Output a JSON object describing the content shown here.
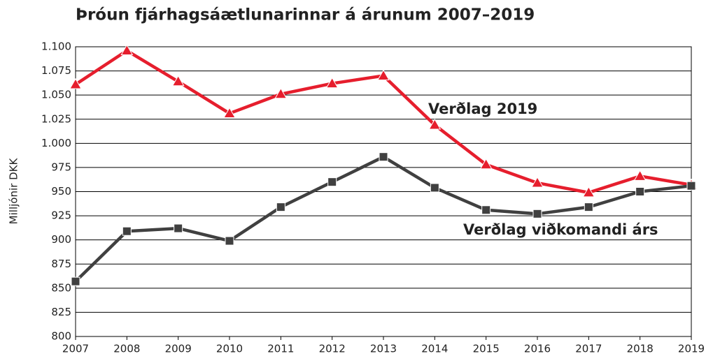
{
  "chart_data": {
    "type": "line",
    "title": "Þróun fjárhagsáætlunarinnar á árunum 2007–2019",
    "y_label": "Milljónir DKK",
    "categories": [
      "2007",
      "2008",
      "2009",
      "2010",
      "2011",
      "2012",
      "2013",
      "2014",
      "2015",
      "2016",
      "2017",
      "2018",
      "2019"
    ],
    "series": [
      {
        "name": "Verðlag 2019",
        "color": "#e61e2d",
        "marker": "triangle",
        "values": [
          1061,
          1096,
          1064,
          1031,
          1051,
          1062,
          1070,
          1019,
          978,
          959,
          949,
          966,
          957
        ]
      },
      {
        "name": "Verðlag viðkomandi árs",
        "color": "#404040",
        "marker": "square",
        "values": [
          857,
          909,
          912,
          899,
          934,
          960,
          986,
          954,
          931,
          927,
          934,
          950,
          956
        ]
      }
    ],
    "ylim": [
      800,
      1100
    ],
    "yticks": [
      800,
      825,
      850,
      875,
      900,
      925,
      950,
      975,
      {
        "value": 1000,
        "label": "1.000"
      },
      {
        "value": 1025,
        "label": "1.025"
      },
      {
        "value": 1050,
        "label": "1.050"
      },
      {
        "value": 1075,
        "label": "1.075"
      },
      {
        "value": 1100,
        "label": "1.100"
      }
    ],
    "grid": true
  }
}
